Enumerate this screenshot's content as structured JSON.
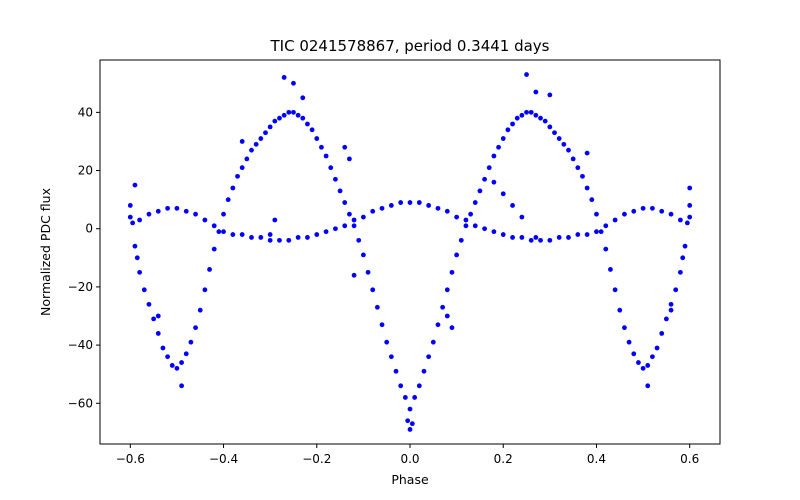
{
  "chart_data": {
    "type": "scatter",
    "title": "TIC 0241578867, period 0.3441 days",
    "xlabel": "Phase",
    "ylabel": "Normalized PDC flux",
    "xlim": [
      -0.665,
      0.665
    ],
    "ylim": [
      -74,
      58
    ],
    "xticks": [
      -0.6,
      -0.4,
      -0.2,
      0.0,
      0.2,
      0.4,
      0.6
    ],
    "xtick_labels": [
      "−0.6",
      "−0.4",
      "−0.2",
      "0.0",
      "0.2",
      "0.4",
      "0.6"
    ],
    "yticks": [
      -60,
      -40,
      -20,
      0,
      20,
      40
    ],
    "ytick_labels": [
      "−60",
      "−40",
      "−20",
      "0",
      "20",
      "40"
    ],
    "grid": false,
    "legend": "none",
    "marker_color": "#0000ff",
    "series": [
      {
        "values": [
          {
            "x": -0.6,
            "y": 8
          },
          {
            "x": -0.595,
            "y": 2
          },
          {
            "x": -0.59,
            "y": -6
          },
          {
            "x": -0.585,
            "y": -10
          },
          {
            "x": -0.58,
            "y": -15
          },
          {
            "x": -0.57,
            "y": -21
          },
          {
            "x": -0.56,
            "y": -26
          },
          {
            "x": -0.55,
            "y": -31
          },
          {
            "x": -0.54,
            "y": -36
          },
          {
            "x": -0.53,
            "y": -41
          },
          {
            "x": -0.52,
            "y": -44
          },
          {
            "x": -0.51,
            "y": -47
          },
          {
            "x": -0.5,
            "y": -48
          },
          {
            "x": -0.49,
            "y": -46
          },
          {
            "x": -0.48,
            "y": -43
          },
          {
            "x": -0.47,
            "y": -39
          },
          {
            "x": -0.46,
            "y": -34
          },
          {
            "x": -0.45,
            "y": -28
          },
          {
            "x": -0.44,
            "y": -21
          },
          {
            "x": -0.43,
            "y": -14
          },
          {
            "x": -0.42,
            "y": -7
          },
          {
            "x": -0.41,
            "y": -1
          },
          {
            "x": -0.4,
            "y": 5
          },
          {
            "x": -0.39,
            "y": 10
          },
          {
            "x": -0.38,
            "y": 14
          },
          {
            "x": -0.37,
            "y": 18
          },
          {
            "x": -0.36,
            "y": 21
          },
          {
            "x": -0.35,
            "y": 24
          },
          {
            "x": -0.34,
            "y": 27
          },
          {
            "x": -0.33,
            "y": 29
          },
          {
            "x": -0.32,
            "y": 31
          },
          {
            "x": -0.31,
            "y": 33
          },
          {
            "x": -0.3,
            "y": 35
          },
          {
            "x": -0.29,
            "y": 37
          },
          {
            "x": -0.28,
            "y": 38
          },
          {
            "x": -0.27,
            "y": 39
          },
          {
            "x": -0.26,
            "y": 40
          },
          {
            "x": -0.25,
            "y": 40
          },
          {
            "x": -0.24,
            "y": 39
          },
          {
            "x": -0.23,
            "y": 38
          },
          {
            "x": -0.22,
            "y": 36
          },
          {
            "x": -0.21,
            "y": 34
          },
          {
            "x": -0.2,
            "y": 31
          },
          {
            "x": -0.19,
            "y": 28
          },
          {
            "x": -0.18,
            "y": 25
          },
          {
            "x": -0.17,
            "y": 21
          },
          {
            "x": -0.16,
            "y": 17
          },
          {
            "x": -0.15,
            "y": 13
          },
          {
            "x": -0.14,
            "y": 9
          },
          {
            "x": -0.13,
            "y": 5
          },
          {
            "x": -0.12,
            "y": 1
          },
          {
            "x": -0.11,
            "y": -4
          },
          {
            "x": -0.1,
            "y": -9
          },
          {
            "x": -0.09,
            "y": -15
          },
          {
            "x": -0.08,
            "y": -21
          },
          {
            "x": -0.07,
            "y": -27
          },
          {
            "x": -0.06,
            "y": -33
          },
          {
            "x": -0.05,
            "y": -39
          },
          {
            "x": -0.04,
            "y": -44
          },
          {
            "x": -0.03,
            "y": -49
          },
          {
            "x": -0.02,
            "y": -54
          },
          {
            "x": -0.01,
            "y": -58
          },
          {
            "x": 0.0,
            "y": -62
          },
          {
            "x": 0.01,
            "y": -58
          },
          {
            "x": 0.02,
            "y": -54
          },
          {
            "x": 0.03,
            "y": -49
          },
          {
            "x": 0.04,
            "y": -44
          },
          {
            "x": 0.05,
            "y": -39
          },
          {
            "x": 0.06,
            "y": -33
          },
          {
            "x": 0.07,
            "y": -27
          },
          {
            "x": 0.08,
            "y": -21
          },
          {
            "x": 0.09,
            "y": -15
          },
          {
            "x": 0.1,
            "y": -9
          },
          {
            "x": 0.11,
            "y": -4
          },
          {
            "x": 0.12,
            "y": 1
          },
          {
            "x": 0.13,
            "y": 5
          },
          {
            "x": 0.14,
            "y": 9
          },
          {
            "x": 0.15,
            "y": 13
          },
          {
            "x": 0.16,
            "y": 17
          },
          {
            "x": 0.17,
            "y": 21
          },
          {
            "x": 0.18,
            "y": 25
          },
          {
            "x": 0.19,
            "y": 28
          },
          {
            "x": 0.2,
            "y": 31
          },
          {
            "x": 0.21,
            "y": 34
          },
          {
            "x": 0.22,
            "y": 36
          },
          {
            "x": 0.23,
            "y": 38
          },
          {
            "x": 0.24,
            "y": 39
          },
          {
            "x": 0.25,
            "y": 40
          },
          {
            "x": 0.26,
            "y": 40
          },
          {
            "x": 0.27,
            "y": 39
          },
          {
            "x": 0.28,
            "y": 38
          },
          {
            "x": 0.29,
            "y": 37
          },
          {
            "x": 0.3,
            "y": 35
          },
          {
            "x": 0.31,
            "y": 33
          },
          {
            "x": 0.32,
            "y": 31
          },
          {
            "x": 0.33,
            "y": 29
          },
          {
            "x": 0.34,
            "y": 27
          },
          {
            "x": 0.35,
            "y": 24
          },
          {
            "x": 0.36,
            "y": 21
          },
          {
            "x": 0.37,
            "y": 18
          },
          {
            "x": 0.38,
            "y": 14
          },
          {
            "x": 0.39,
            "y": 10
          },
          {
            "x": 0.4,
            "y": 5
          },
          {
            "x": 0.41,
            "y": -1
          },
          {
            "x": 0.42,
            "y": -7
          },
          {
            "x": 0.43,
            "y": -14
          },
          {
            "x": 0.44,
            "y": -21
          },
          {
            "x": 0.45,
            "y": -28
          },
          {
            "x": 0.46,
            "y": -34
          },
          {
            "x": 0.47,
            "y": -39
          },
          {
            "x": 0.48,
            "y": -43
          },
          {
            "x": 0.49,
            "y": -46
          },
          {
            "x": 0.5,
            "y": -48
          },
          {
            "x": 0.51,
            "y": -47
          },
          {
            "x": 0.52,
            "y": -44
          },
          {
            "x": 0.53,
            "y": -41
          },
          {
            "x": 0.54,
            "y": -36
          },
          {
            "x": 0.55,
            "y": -31
          },
          {
            "x": 0.56,
            "y": -26
          },
          {
            "x": 0.57,
            "y": -21
          },
          {
            "x": 0.58,
            "y": -15
          },
          {
            "x": 0.585,
            "y": -10
          },
          {
            "x": 0.59,
            "y": -6
          },
          {
            "x": 0.595,
            "y": 2
          },
          {
            "x": 0.6,
            "y": 8
          },
          {
            "x": -0.6,
            "y": 4
          },
          {
            "x": -0.58,
            "y": 3
          },
          {
            "x": -0.56,
            "y": 5
          },
          {
            "x": -0.54,
            "y": 6
          },
          {
            "x": -0.52,
            "y": 7
          },
          {
            "x": -0.5,
            "y": 7
          },
          {
            "x": -0.48,
            "y": 6
          },
          {
            "x": -0.46,
            "y": 5
          },
          {
            "x": -0.44,
            "y": 3
          },
          {
            "x": -0.42,
            "y": 1
          },
          {
            "x": -0.4,
            "y": -1
          },
          {
            "x": -0.38,
            "y": -2
          },
          {
            "x": -0.36,
            "y": -2
          },
          {
            "x": -0.34,
            "y": -3
          },
          {
            "x": -0.32,
            "y": -3
          },
          {
            "x": -0.3,
            "y": -4
          },
          {
            "x": -0.28,
            "y": -4
          },
          {
            "x": -0.26,
            "y": -4
          },
          {
            "x": -0.24,
            "y": -3
          },
          {
            "x": -0.22,
            "y": -3
          },
          {
            "x": -0.2,
            "y": -2
          },
          {
            "x": -0.18,
            "y": -1
          },
          {
            "x": -0.16,
            "y": 0
          },
          {
            "x": -0.14,
            "y": 1
          },
          {
            "x": -0.12,
            "y": 3
          },
          {
            "x": -0.1,
            "y": 4
          },
          {
            "x": -0.08,
            "y": 6
          },
          {
            "x": -0.06,
            "y": 7
          },
          {
            "x": -0.04,
            "y": 8
          },
          {
            "x": -0.02,
            "y": 9
          },
          {
            "x": 0.0,
            "y": 9
          },
          {
            "x": 0.02,
            "y": 9
          },
          {
            "x": 0.04,
            "y": 8
          },
          {
            "x": 0.06,
            "y": 7
          },
          {
            "x": 0.08,
            "y": 6
          },
          {
            "x": 0.1,
            "y": 4
          },
          {
            "x": 0.12,
            "y": 3
          },
          {
            "x": 0.14,
            "y": 1
          },
          {
            "x": 0.16,
            "y": 0
          },
          {
            "x": 0.18,
            "y": -1
          },
          {
            "x": 0.2,
            "y": -2
          },
          {
            "x": 0.22,
            "y": -3
          },
          {
            "x": 0.24,
            "y": -3
          },
          {
            "x": 0.26,
            "y": -4
          },
          {
            "x": 0.28,
            "y": -4
          },
          {
            "x": 0.3,
            "y": -4
          },
          {
            "x": 0.32,
            "y": -3
          },
          {
            "x": 0.34,
            "y": -3
          },
          {
            "x": 0.36,
            "y": -2
          },
          {
            "x": 0.38,
            "y": -2
          },
          {
            "x": 0.4,
            "y": -1
          },
          {
            "x": 0.42,
            "y": 1
          },
          {
            "x": 0.44,
            "y": 3
          },
          {
            "x": 0.46,
            "y": 5
          },
          {
            "x": 0.48,
            "y": 6
          },
          {
            "x": 0.5,
            "y": 7
          },
          {
            "x": 0.52,
            "y": 7
          },
          {
            "x": 0.54,
            "y": 6
          },
          {
            "x": 0.56,
            "y": 5
          },
          {
            "x": 0.58,
            "y": 3
          },
          {
            "x": 0.6,
            "y": 4
          },
          {
            "x": -0.27,
            "y": 52
          },
          {
            "x": -0.25,
            "y": 50
          },
          {
            "x": -0.23,
            "y": 45
          },
          {
            "x": 0.25,
            "y": 53
          },
          {
            "x": 0.27,
            "y": 47
          },
          {
            "x": 0.3,
            "y": 46
          },
          {
            "x": -0.59,
            "y": 15
          },
          {
            "x": 0.6,
            "y": 14
          },
          {
            "x": -0.49,
            "y": -54
          },
          {
            "x": 0.51,
            "y": -54
          },
          {
            "x": 0.0,
            "y": -69
          },
          {
            "x": -0.005,
            "y": -66
          },
          {
            "x": 0.005,
            "y": -67
          },
          {
            "x": -0.14,
            "y": 28
          },
          {
            "x": -0.13,
            "y": 24
          },
          {
            "x": 0.18,
            "y": 16
          },
          {
            "x": 0.2,
            "y": 12
          },
          {
            "x": 0.22,
            "y": 8
          },
          {
            "x": 0.24,
            "y": 4
          },
          {
            "x": 0.27,
            "y": -3
          },
          {
            "x": -0.29,
            "y": 3
          },
          {
            "x": -0.3,
            "y": -2
          },
          {
            "x": -0.12,
            "y": -16
          },
          {
            "x": 0.09,
            "y": -34
          },
          {
            "x": 0.08,
            "y": -30
          },
          {
            "x": -0.36,
            "y": 30
          },
          {
            "x": 0.38,
            "y": 26
          },
          {
            "x": -0.54,
            "y": -30
          },
          {
            "x": 0.56,
            "y": -28
          }
        ]
      }
    ]
  }
}
